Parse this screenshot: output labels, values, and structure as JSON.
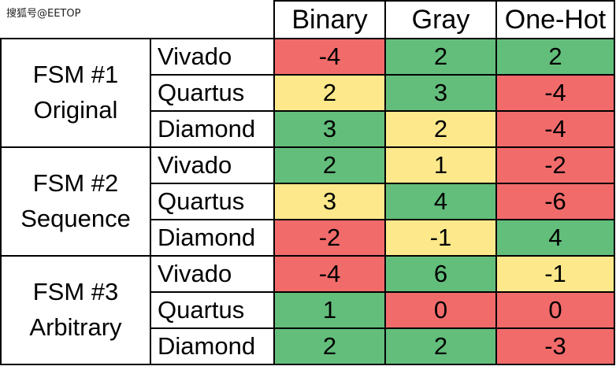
{
  "watermark": "搜狐号@EETOP",
  "columns": [
    "Binary",
    "Gray",
    "One-Hot"
  ],
  "colors": {
    "red": "#f26b6b",
    "green": "#63be7b",
    "yellow": "#fde98b"
  },
  "groups": [
    {
      "name_line1": "FSM #1",
      "name_line2": "Original",
      "rows": [
        {
          "tool": "Vivado",
          "values": [
            "-4",
            "2",
            "2"
          ],
          "colors": [
            "red",
            "green",
            "green"
          ]
        },
        {
          "tool": "Quartus",
          "values": [
            "2",
            "3",
            "-4"
          ],
          "colors": [
            "yellow",
            "green",
            "red"
          ]
        },
        {
          "tool": "Diamond",
          "values": [
            "3",
            "2",
            "-4"
          ],
          "colors": [
            "green",
            "yellow",
            "red"
          ]
        }
      ]
    },
    {
      "name_line1": "FSM #2",
      "name_line2": "Sequence",
      "rows": [
        {
          "tool": "Vivado",
          "values": [
            "2",
            "1",
            "-2"
          ],
          "colors": [
            "green",
            "yellow",
            "red"
          ]
        },
        {
          "tool": "Quartus",
          "values": [
            "3",
            "4",
            "-6"
          ],
          "colors": [
            "yellow",
            "green",
            "red"
          ]
        },
        {
          "tool": "Diamond",
          "values": [
            "-2",
            "-1",
            "4"
          ],
          "colors": [
            "red",
            "yellow",
            "green"
          ]
        }
      ]
    },
    {
      "name_line1": "FSM #3",
      "name_line2": "Arbitrary",
      "rows": [
        {
          "tool": "Vivado",
          "values": [
            "-4",
            "6",
            "-1"
          ],
          "colors": [
            "red",
            "green",
            "yellow"
          ]
        },
        {
          "tool": "Quartus",
          "values": [
            "1",
            "0",
            "0"
          ],
          "colors": [
            "green",
            "red",
            "red"
          ]
        },
        {
          "tool": "Diamond",
          "values": [
            "2",
            "2",
            "-3"
          ],
          "colors": [
            "green",
            "green",
            "red"
          ]
        }
      ]
    }
  ]
}
